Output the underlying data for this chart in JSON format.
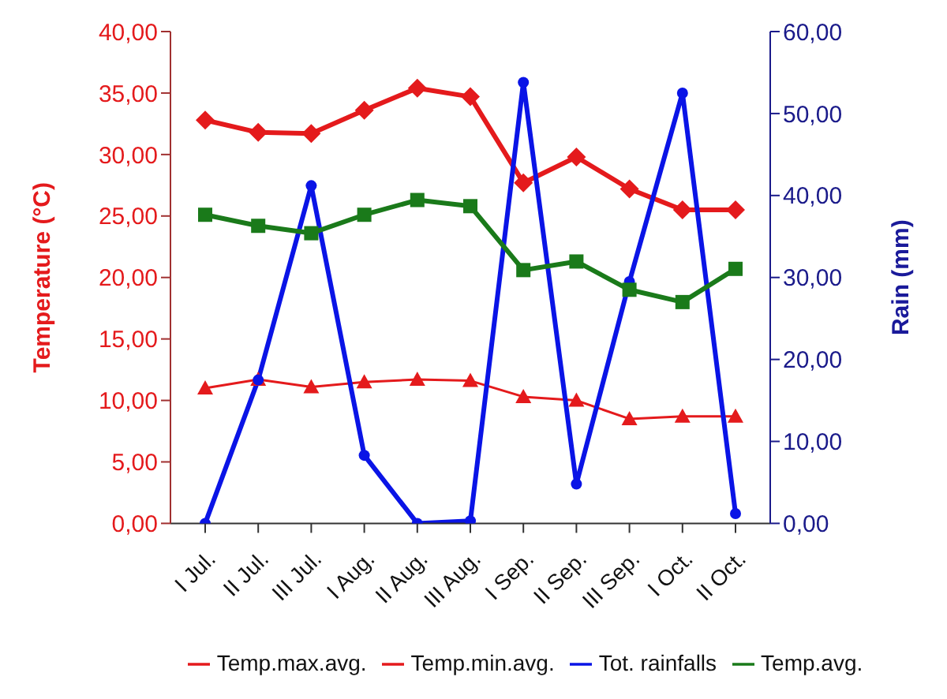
{
  "chart_data": {
    "type": "line",
    "categories": [
      "I Jul.",
      "II Jul.",
      "III Jul.",
      "I Aug.",
      "II Aug.",
      "III Aug.",
      "I Sep.",
      "II Sep.",
      "III Sep.",
      "I Oct.",
      "II Oct."
    ],
    "ylabel": "Temperature (°C)",
    "y2label": "Rain (mm)",
    "ylim": [
      0,
      40
    ],
    "yticks": [
      {
        "value": 0,
        "label": "0,00"
      },
      {
        "value": 5,
        "label": "5,00"
      },
      {
        "value": 10,
        "label": "10,00"
      },
      {
        "value": 15,
        "label": "15,00"
      },
      {
        "value": 20,
        "label": "20,00"
      },
      {
        "value": 25,
        "label": "25,00"
      },
      {
        "value": 30,
        "label": "30,00"
      },
      {
        "value": 35,
        "label": "35,00"
      },
      {
        "value": 40,
        "label": "40,00"
      }
    ],
    "y2lim": [
      0,
      60
    ],
    "y2ticks": [
      {
        "value": 0,
        "label": "0,00"
      },
      {
        "value": 10,
        "label": "10,00"
      },
      {
        "value": 20,
        "label": "20,00"
      },
      {
        "value": 30,
        "label": "30,00"
      },
      {
        "value": 40,
        "label": "40,00"
      },
      {
        "value": 50,
        "label": "50,00"
      },
      {
        "value": 60,
        "label": "60,00"
      }
    ],
    "legend": "bottom",
    "series": [
      {
        "name": "Temp.max.avg.",
        "color": "#e41a1c",
        "marker": "diamond",
        "values": [
          32.8,
          31.8,
          31.7,
          33.6,
          35.4,
          34.7,
          27.7,
          29.8,
          27.2,
          25.5,
          25.5
        ]
      },
      {
        "name": "Temp.min.avg.",
        "color": "#e41a1c",
        "marker": "triangle",
        "values": [
          11.0,
          11.7,
          11.1,
          11.5,
          11.7,
          11.6,
          10.3,
          10.0,
          8.5,
          8.7,
          8.7
        ]
      },
      {
        "name": "Tot. rainfalls",
        "color": "#0a14e6",
        "marker": "circle",
        "axis": "y2",
        "values": [
          0,
          17.5,
          41.2,
          8.3,
          0,
          0.3,
          53.8,
          4.8,
          29.5,
          52.5,
          1.2
        ]
      },
      {
        "name": "Temp.avg.",
        "color": "#1a7a1a",
        "marker": "square",
        "values": [
          25.1,
          24.2,
          23.6,
          25.1,
          26.3,
          25.8,
          20.6,
          21.3,
          19.0,
          18.0,
          20.7
        ]
      }
    ]
  }
}
